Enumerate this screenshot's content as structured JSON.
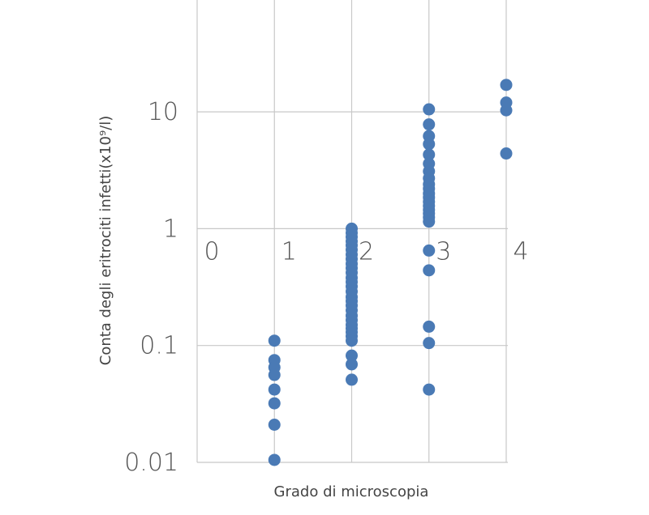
{
  "chart_data": {
    "type": "scatter",
    "title": "",
    "xlabel": "Grado di microscopia",
    "ylabel": "Conta degli eritrociti infetti(x10⁹/l)",
    "y_scale": "log",
    "ylim": [
      0.01,
      30
    ],
    "xlim": [
      -1,
      4.05
    ],
    "x_ticks": [
      {
        "value": 0,
        "label": "0"
      },
      {
        "value": 1,
        "label": "1"
      },
      {
        "value": 2,
        "label": "2"
      },
      {
        "value": 3,
        "label": "3"
      },
      {
        "value": 4,
        "label": "4"
      }
    ],
    "y_ticks": [
      {
        "value": 0.01,
        "label": "0.01"
      },
      {
        "value": 0.1,
        "label": "0.1"
      },
      {
        "value": 1,
        "label": "1"
      },
      {
        "value": 10,
        "label": "10"
      }
    ],
    "grid": true,
    "marker_color": "#4A7AB5",
    "grid_color": "#C8C8C8",
    "series": [
      {
        "points": [
          [
            1,
            0.11
          ],
          [
            1,
            0.075
          ],
          [
            1,
            0.065
          ],
          [
            1,
            0.056
          ],
          [
            1,
            0.042
          ],
          [
            1,
            0.032
          ],
          [
            1,
            0.021
          ],
          [
            1,
            0.0105
          ],
          [
            2,
            1.0
          ],
          [
            2,
            0.92
          ],
          [
            2,
            0.85
          ],
          [
            2,
            0.78
          ],
          [
            2,
            0.72
          ],
          [
            2,
            0.66
          ],
          [
            2,
            0.6
          ],
          [
            2,
            0.55
          ],
          [
            2,
            0.5
          ],
          [
            2,
            0.46
          ],
          [
            2,
            0.42
          ],
          [
            2,
            0.38
          ],
          [
            2,
            0.35
          ],
          [
            2,
            0.32
          ],
          [
            2,
            0.29
          ],
          [
            2,
            0.26
          ],
          [
            2,
            0.24
          ],
          [
            2,
            0.22
          ],
          [
            2,
            0.2
          ],
          [
            2,
            0.18
          ],
          [
            2,
            0.165
          ],
          [
            2,
            0.15
          ],
          [
            2,
            0.14
          ],
          [
            2,
            0.13
          ],
          [
            2,
            0.12
          ],
          [
            2,
            0.11
          ],
          [
            2,
            0.082
          ],
          [
            2,
            0.069
          ],
          [
            2,
            0.051
          ],
          [
            3,
            10.5
          ],
          [
            3,
            7.8
          ],
          [
            3,
            6.2
          ],
          [
            3,
            5.3
          ],
          [
            3,
            4.3
          ],
          [
            3,
            3.6
          ],
          [
            3,
            3.1
          ],
          [
            3,
            2.7
          ],
          [
            3,
            2.4
          ],
          [
            3,
            2.2
          ],
          [
            3,
            2.0
          ],
          [
            3,
            1.85
          ],
          [
            3,
            1.7
          ],
          [
            3,
            1.57
          ],
          [
            3,
            1.45
          ],
          [
            3,
            1.35
          ],
          [
            3,
            1.25
          ],
          [
            3,
            1.15
          ],
          [
            3,
            0.65
          ],
          [
            3,
            0.44
          ],
          [
            3,
            0.145
          ],
          [
            3,
            0.105
          ],
          [
            3,
            0.042
          ],
          [
            4,
            17
          ],
          [
            4,
            12
          ],
          [
            4,
            10.3
          ],
          [
            4,
            4.4
          ]
        ]
      }
    ]
  }
}
